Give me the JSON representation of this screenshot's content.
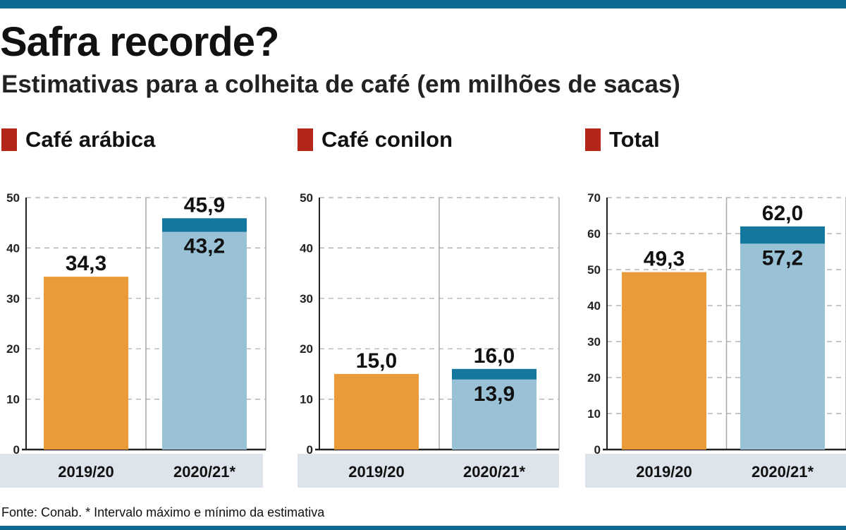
{
  "header": {
    "title": "Safra recorde?",
    "subtitle": "Estimativas para a colheita de café (em milhões de sacas)"
  },
  "colors": {
    "brand_bar": "#0e6a93",
    "legend_square": "#b5261a",
    "bar_2019": "#e99b3a",
    "bar_2020_min": "#99c2d7",
    "bar_2020_range": "#13779e",
    "category_band": "#dde4eb",
    "grid": "#a8a8a8",
    "axis": "#222222"
  },
  "chart_data": [
    {
      "type": "bar",
      "title": "Café arábica",
      "categories": [
        "2019/20",
        "2020/21*"
      ],
      "ylim": [
        0,
        50
      ],
      "yticks": [
        0,
        10,
        20,
        30,
        40,
        50
      ],
      "bars": [
        {
          "category": "2019/20",
          "value": 34.3,
          "label": "34,3"
        },
        {
          "category": "2020/21*",
          "min": 43.2,
          "max": 45.9,
          "min_label": "43,2",
          "max_label": "45,9"
        }
      ]
    },
    {
      "type": "bar",
      "title": "Café conilon",
      "categories": [
        "2019/20",
        "2020/21*"
      ],
      "ylim": [
        0,
        50
      ],
      "yticks": [
        0,
        10,
        20,
        30,
        40,
        50
      ],
      "bars": [
        {
          "category": "2019/20",
          "value": 15.0,
          "label": "15,0"
        },
        {
          "category": "2020/21*",
          "min": 13.9,
          "max": 16.0,
          "min_label": "13,9",
          "max_label": "16,0"
        }
      ]
    },
    {
      "type": "bar",
      "title": "Total",
      "categories": [
        "2019/20",
        "2020/21*"
      ],
      "ylim": [
        0,
        70
      ],
      "yticks": [
        0,
        10,
        20,
        30,
        40,
        50,
        60,
        70
      ],
      "bars": [
        {
          "category": "2019/20",
          "value": 49.3,
          "label": "49,3"
        },
        {
          "category": "2020/21*",
          "min": 57.2,
          "max": 62.0,
          "min_label": "57,2",
          "max_label": "62,0"
        }
      ]
    }
  ],
  "footnote": "Fonte: Conab. * Intervalo máximo e mínimo da estimativa"
}
